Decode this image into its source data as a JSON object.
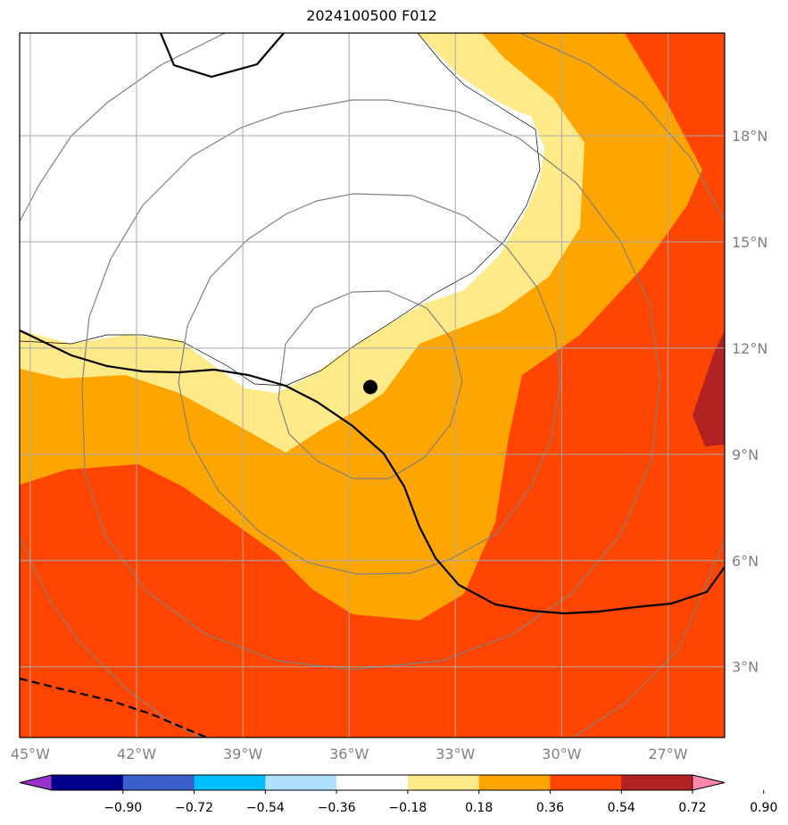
{
  "title": "2024100500 F012",
  "map": {
    "extent": {
      "lon_min": -45.3,
      "lon_max": -25.4,
      "lat_min": 1.0,
      "lat_max": 20.9
    },
    "lon_ticks": [
      {
        "value": -45,
        "label": "45°W"
      },
      {
        "value": -42,
        "label": "42°W"
      },
      {
        "value": -39,
        "label": "39°W"
      },
      {
        "value": -36,
        "label": "36°W"
      },
      {
        "value": -33,
        "label": "33°W"
      },
      {
        "value": -30,
        "label": "30°W"
      },
      {
        "value": -27,
        "label": "27°W"
      }
    ],
    "lat_ticks": [
      {
        "value": 3,
        "label": "3°N"
      },
      {
        "value": 6,
        "label": "6°N"
      },
      {
        "value": 9,
        "label": "9°N"
      },
      {
        "value": 12,
        "label": "12°N"
      },
      {
        "value": 15,
        "label": "15°N"
      },
      {
        "value": 18,
        "label": "18°N"
      }
    ],
    "storm_center": {
      "lon": -35.4,
      "lat": 10.9
    },
    "fill_colors": {
      "0.18-0.36": "#ffea8a",
      "0.36-0.54": "#ffa500",
      "0.54-0.72": "#ff4500",
      "0.72-0.90": "#b22222"
    }
  },
  "colorbar": {
    "colors": [
      "#9932cc",
      "#00008b",
      "#3a5fcd",
      "#00bfff",
      "#b0e2ff",
      "#ffffff",
      "#ffea8a",
      "#ffa500",
      "#ff4500",
      "#b22222",
      "#ff88aa"
    ],
    "tick_labels": [
      "−0.90",
      "−0.72",
      "−0.54",
      "−0.36",
      "−0.18",
      "0.18",
      "0.36",
      "0.54",
      "0.72",
      "0.90"
    ]
  }
}
